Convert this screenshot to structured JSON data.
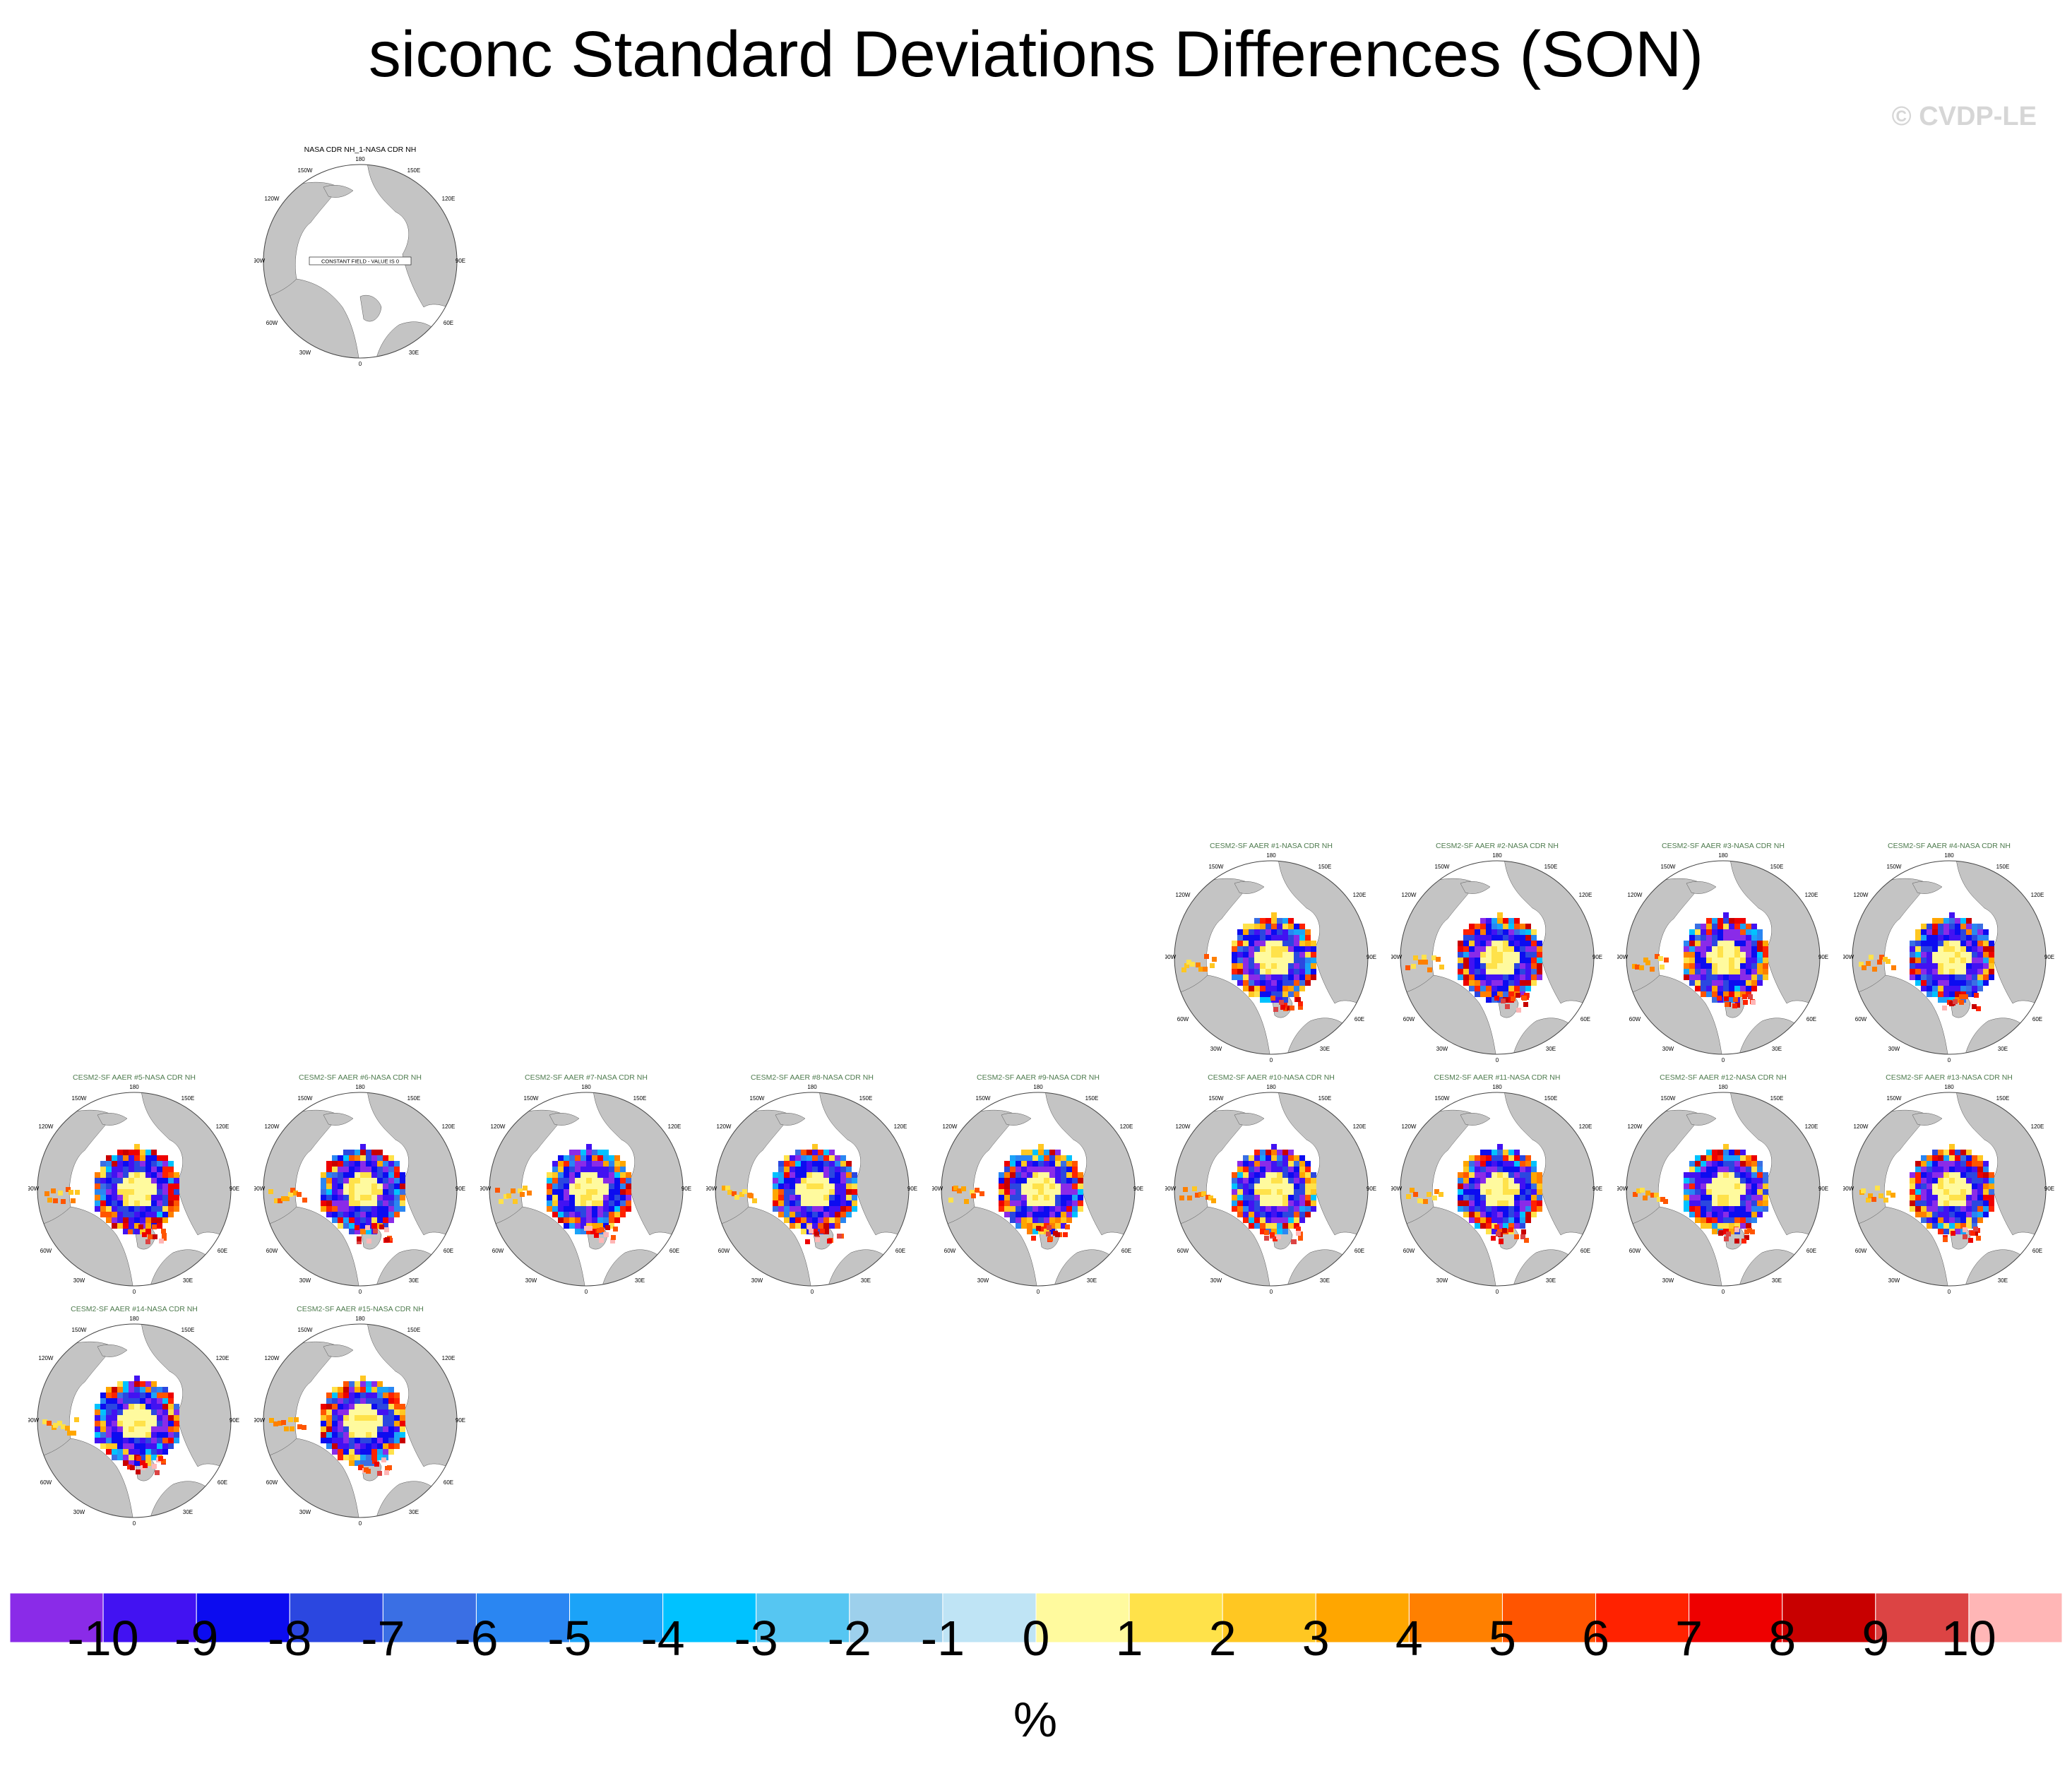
{
  "title": "siconc Standard Deviations Differences (SON)",
  "watermark": "© CVDP-LE",
  "units": "%",
  "colorbar": {
    "labels": [
      "-10",
      "-9",
      "-8",
      "-7",
      "-6",
      "-5",
      "-4",
      "-3",
      "-2",
      "-1",
      "0",
      "1",
      "2",
      "3",
      "4",
      "5",
      "6",
      "7",
      "8",
      "9",
      "10"
    ],
    "colors": [
      "#8a2be8",
      "#4212f2",
      "#0c0cf0",
      "#2b47e0",
      "#3a6fe4",
      "#2a86f2",
      "#1ba3f8",
      "#00c2ff",
      "#56c6f2",
      "#9dd0ec",
      "#bfe4f5",
      "#fffa9e",
      "#ffe24a",
      "#ffc722",
      "#ffa600",
      "#ff8000",
      "#ff5500",
      "#ff2200",
      "#ee0000",
      "#c80000",
      "#dc4444",
      "#ffb6b6"
    ]
  },
  "land_color": "#c4c4c4",
  "map_labels": {
    "top": "180",
    "left": "90W",
    "right": "90E",
    "bottom": "0",
    "upper_left": "150W",
    "upper_right": "150E",
    "mid_upper_left": "120W",
    "mid_upper_right": "120E",
    "mid_lower_left": "60W",
    "mid_lower_right": "60E",
    "lower_left": "30W",
    "lower_right": "30E"
  },
  "constant_field_text": "CONSTANT FIELD - VALUE IS 0",
  "chart_data": [
    {
      "type": "heatmap",
      "title": "NASA CDR NH_1-NASA CDR NH",
      "constant": 0,
      "kind": "obs"
    },
    {
      "type": "heatmap",
      "title": "CESM2-SF AAER #1-NASA CDR NH",
      "kind": "model"
    },
    {
      "type": "heatmap",
      "title": "CESM2-SF AAER #2-NASA CDR NH",
      "kind": "model"
    },
    {
      "type": "heatmap",
      "title": "CESM2-SF AAER #3-NASA CDR NH",
      "kind": "model"
    },
    {
      "type": "heatmap",
      "title": "CESM2-SF AAER #4-NASA CDR NH",
      "kind": "model"
    },
    {
      "type": "heatmap",
      "title": "CESM2-SF AAER #5-NASA CDR NH",
      "kind": "model"
    },
    {
      "type": "heatmap",
      "title": "CESM2-SF AAER #6-NASA CDR NH",
      "kind": "model"
    },
    {
      "type": "heatmap",
      "title": "CESM2-SF AAER #7-NASA CDR NH",
      "kind": "model"
    },
    {
      "type": "heatmap",
      "title": "CESM2-SF AAER #8-NASA CDR NH",
      "kind": "model"
    },
    {
      "type": "heatmap",
      "title": "CESM2-SF AAER #9-NASA CDR NH",
      "kind": "model"
    },
    {
      "type": "heatmap",
      "title": "CESM2-SF AAER #10-NASA CDR NH",
      "kind": "model"
    },
    {
      "type": "heatmap",
      "title": "CESM2-SF AAER #11-NASA CDR NH",
      "kind": "model"
    },
    {
      "type": "heatmap",
      "title": "CESM2-SF AAER #12-NASA CDR NH",
      "kind": "model"
    },
    {
      "type": "heatmap",
      "title": "CESM2-SF AAER #13-NASA CDR NH",
      "kind": "model"
    },
    {
      "type": "heatmap",
      "title": "CESM2-SF AAER #14-NASA CDR NH",
      "kind": "model"
    },
    {
      "type": "heatmap",
      "title": "CESM2-SF AAER #15-NASA CDR NH",
      "kind": "model"
    }
  ]
}
